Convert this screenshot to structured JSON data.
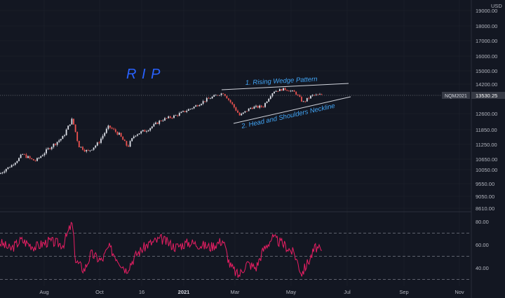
{
  "chart_data": {
    "type": "candlestick",
    "symbol": "NQM2021",
    "currency": "USD",
    "last_price": "13530.25",
    "headline": "R I P",
    "annotations": [
      "1. Rising Wedge Pattern",
      "2. Head and Shoulders Neckline"
    ],
    "price_ticks": [
      "19000.00",
      "18000.00",
      "17000.00",
      "16000.00",
      "15000.00",
      "14200.00",
      "13500.00",
      "12600.00",
      "11850.00",
      "11250.00",
      "10650.00",
      "10050.00",
      "9550.00",
      "9050.00",
      "8610.00"
    ],
    "osc_ticks": [
      "80.00",
      "60.00",
      "40.00"
    ],
    "osc_bands": [
      70,
      30,
      50
    ],
    "x_ticks": [
      "Aug",
      "Oct",
      "16",
      "2021",
      "Mar",
      "May",
      "Jul",
      "Sep",
      "Nov"
    ],
    "x_ticks_bold": [
      "2021"
    ],
    "price_waypoints": [
      [
        0,
        9900
      ],
      [
        15,
        10250
      ],
      [
        32,
        10850
      ],
      [
        50,
        10550
      ],
      [
        70,
        11100
      ],
      [
        90,
        11550
      ],
      [
        103,
        12350
      ],
      [
        112,
        11200
      ],
      [
        125,
        10950
      ],
      [
        140,
        11300
      ],
      [
        155,
        12000
      ],
      [
        170,
        11650
      ],
      [
        182,
        11150
      ],
      [
        192,
        11650
      ],
      [
        210,
        11850
      ],
      [
        230,
        12300
      ],
      [
        250,
        12500
      ],
      [
        275,
        12900
      ],
      [
        295,
        13300
      ],
      [
        318,
        13650
      ],
      [
        330,
        13100
      ],
      [
        342,
        12500
      ],
      [
        358,
        12900
      ],
      [
        375,
        12950
      ],
      [
        390,
        13750
      ],
      [
        405,
        13900
      ],
      [
        420,
        13700
      ],
      [
        432,
        13150
      ],
      [
        445,
        13500
      ],
      [
        460,
        13550
      ]
    ],
    "osc_waypoints": [
      [
        0,
        62
      ],
      [
        15,
        56
      ],
      [
        30,
        64
      ],
      [
        50,
        58
      ],
      [
        70,
        63
      ],
      [
        90,
        60
      ],
      [
        100,
        75
      ],
      [
        103,
        78
      ],
      [
        108,
        46
      ],
      [
        120,
        38
      ],
      [
        130,
        52
      ],
      [
        145,
        46
      ],
      [
        155,
        58
      ],
      [
        165,
        50
      ],
      [
        180,
        38
      ],
      [
        195,
        52
      ],
      [
        210,
        60
      ],
      [
        230,
        65
      ],
      [
        250,
        58
      ],
      [
        270,
        62
      ],
      [
        300,
        58
      ],
      [
        318,
        64
      ],
      [
        328,
        42
      ],
      [
        340,
        33
      ],
      [
        352,
        44
      ],
      [
        365,
        40
      ],
      [
        375,
        55
      ],
      [
        388,
        66
      ],
      [
        405,
        60
      ],
      [
        420,
        52
      ],
      [
        430,
        35
      ],
      [
        442,
        48
      ],
      [
        450,
        58
      ],
      [
        460,
        53
      ]
    ],
    "colors": {
      "up": "#e0e3eb",
      "down": "#ef5350",
      "osc": "#e91e63",
      "accent": "#2962ff",
      "background": "#131722",
      "grid": "#1e222d",
      "text": "#b2b5be"
    }
  }
}
